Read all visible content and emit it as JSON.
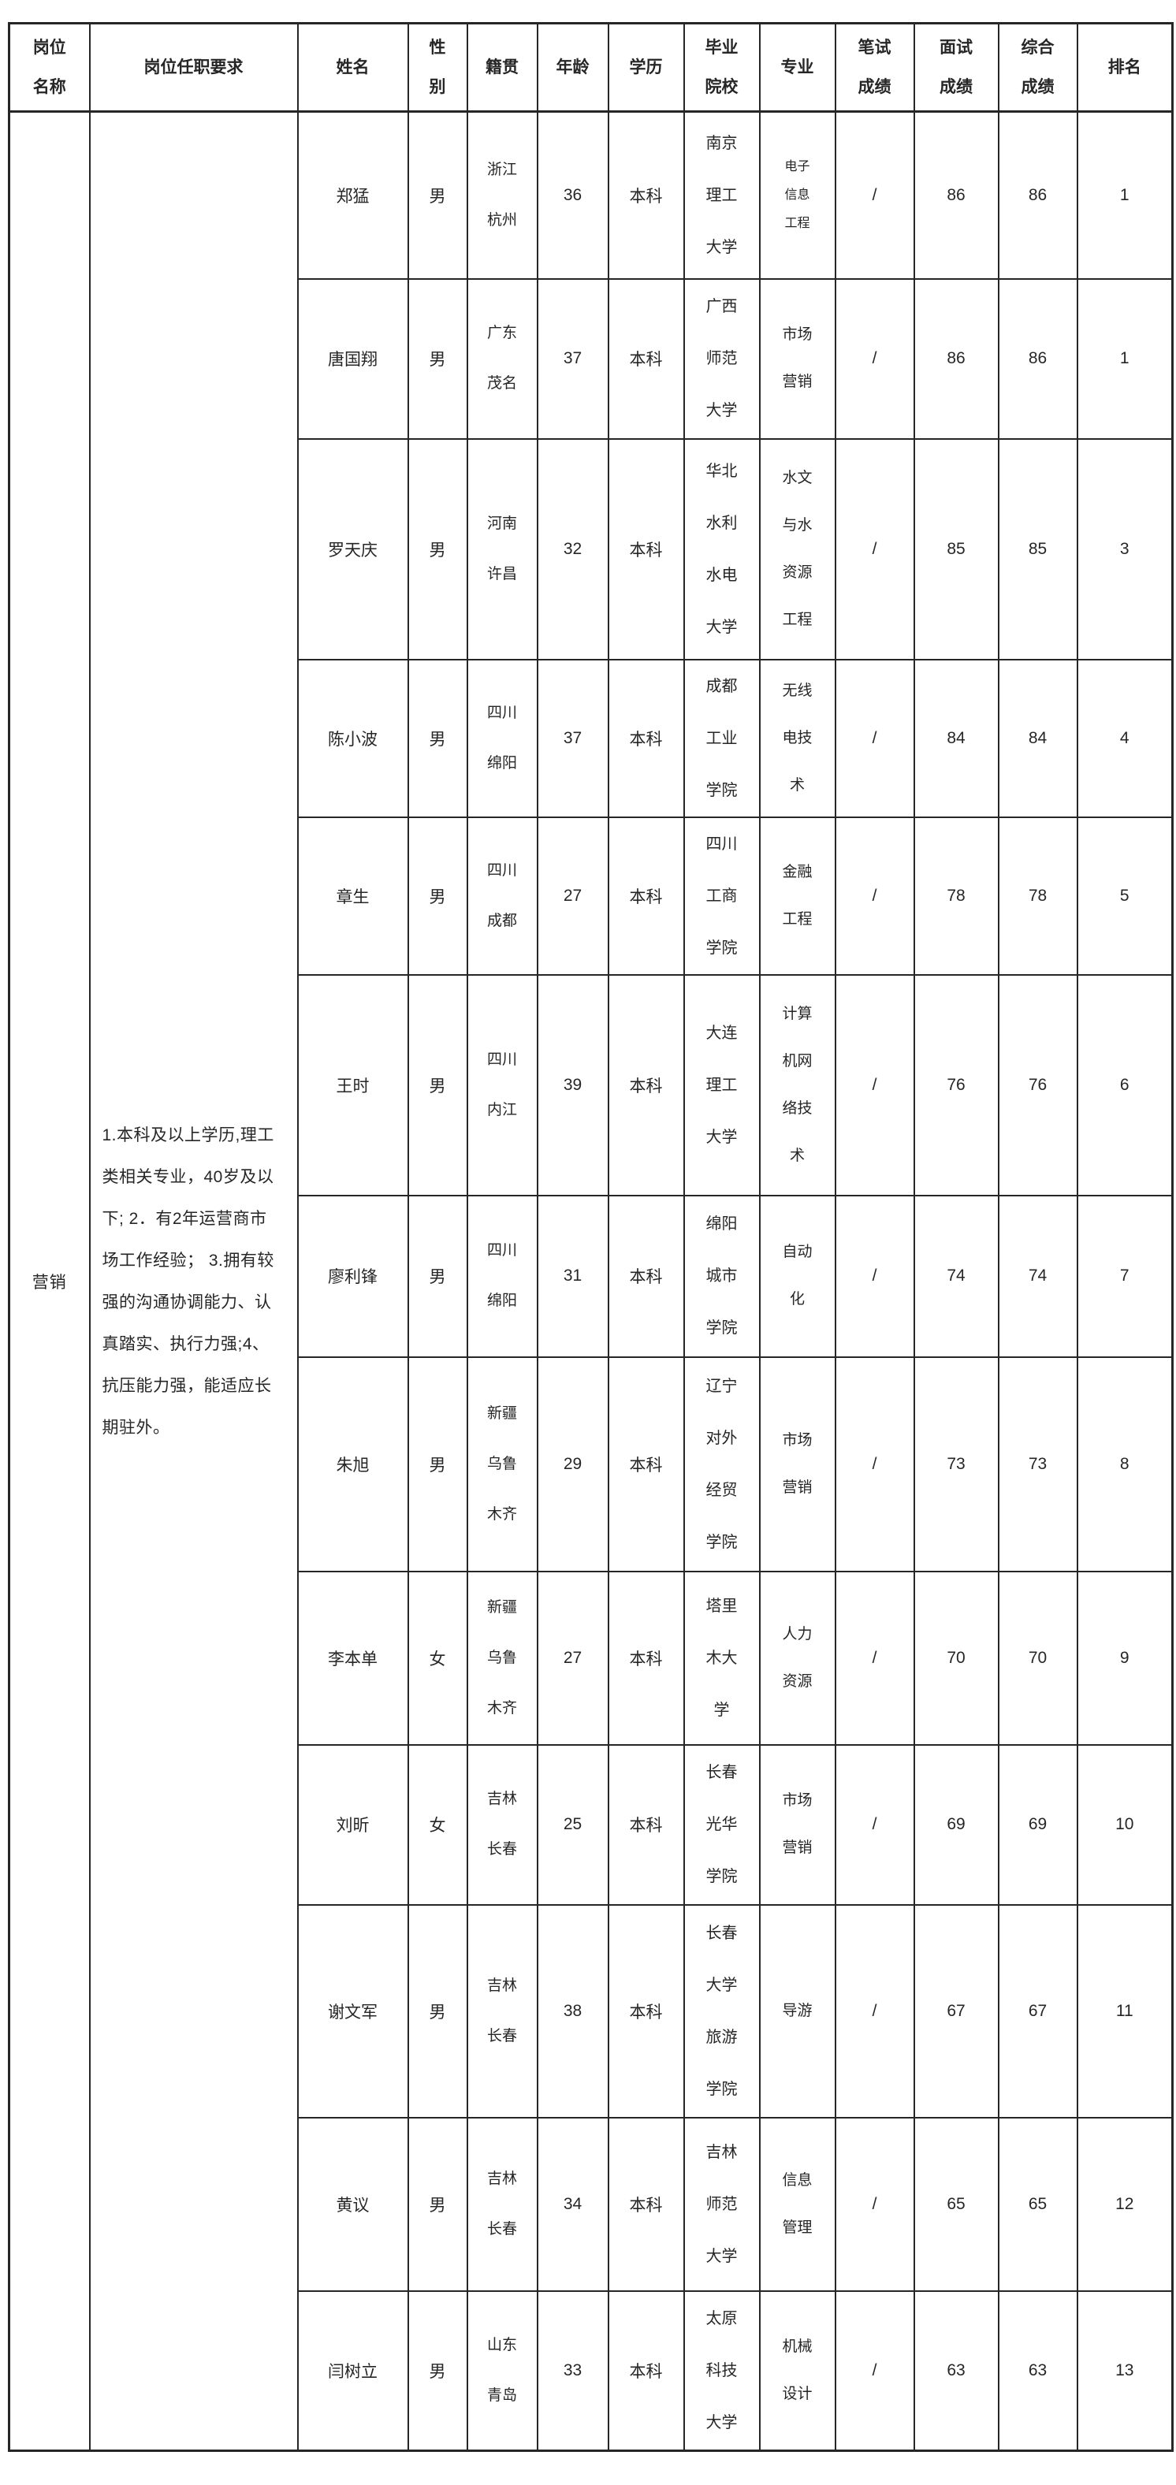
{
  "colors": {
    "background": "#ffffff",
    "border": "#262626",
    "text": "#262626"
  },
  "table": {
    "headers": [
      [
        "岗位",
        "名称"
      ],
      [
        "岗位任职要求"
      ],
      [
        "姓名"
      ],
      [
        "性",
        "别"
      ],
      [
        "籍贯"
      ],
      [
        "年龄"
      ],
      [
        "学历"
      ],
      [
        "毕业",
        "院校"
      ],
      [
        "专业"
      ],
      [
        "笔试",
        "成绩"
      ],
      [
        "面试",
        "成绩"
      ],
      [
        "综合",
        "成绩"
      ],
      [
        "排名"
      ]
    ],
    "position": {
      "name": "营销",
      "requirements": "1.本科及以上学历,理工类相关专业，40岁及以下; 2．有2年运营商市场工作经验； 3.拥有较强的沟通协调能力、认真踏实、执行力强;4、抗压能力强，能适应长期驻外。"
    },
    "rows": [
      {
        "name": "郑猛",
        "gender": "男",
        "native": [
          "浙江",
          "杭州"
        ],
        "age": "36",
        "education": "本科",
        "school": [
          "南京",
          "理工",
          "大学"
        ],
        "major": [
          "电子",
          "信息",
          "工程"
        ],
        "written": "/",
        "interview": "86",
        "overall": "86",
        "rank": "1"
      },
      {
        "name": "唐国翔",
        "gender": "男",
        "native": [
          "广东",
          "茂名"
        ],
        "age": "37",
        "education": "本科",
        "school": [
          "广西",
          "师范",
          "大学"
        ],
        "major": [
          "市场",
          "营销"
        ],
        "written": "/",
        "interview": "86",
        "overall": "86",
        "rank": "1"
      },
      {
        "name": "罗天庆",
        "gender": "男",
        "native": [
          "河南",
          "许昌"
        ],
        "age": "32",
        "education": "本科",
        "school": [
          "华北",
          "水利",
          "水电",
          "大学"
        ],
        "major": [
          "水文",
          "与水",
          "资源",
          "工程"
        ],
        "written": "/",
        "interview": "85",
        "overall": "85",
        "rank": "3"
      },
      {
        "name": "陈小波",
        "gender": "男",
        "native": [
          "四川",
          "绵阳"
        ],
        "age": "37",
        "education": "本科",
        "school": [
          "成都",
          "工业",
          "学院"
        ],
        "major": [
          "无线",
          "电技",
          "术"
        ],
        "written": "/",
        "interview": "84",
        "overall": "84",
        "rank": "4"
      },
      {
        "name": "章生",
        "gender": "男",
        "native": [
          "四川",
          "成都"
        ],
        "age": "27",
        "education": "本科",
        "school": [
          "四川",
          "工商",
          "学院"
        ],
        "major": [
          "金融",
          "工程"
        ],
        "written": "/",
        "interview": "78",
        "overall": "78",
        "rank": "5"
      },
      {
        "name": "王时",
        "gender": "男",
        "native": [
          "四川",
          "内江"
        ],
        "age": "39",
        "education": "本科",
        "school": [
          "大连",
          "理工",
          "大学"
        ],
        "major": [
          "计算",
          "机网",
          "络技",
          "术"
        ],
        "written": "/",
        "interview": "76",
        "overall": "76",
        "rank": "6"
      },
      {
        "name": "廖利锋",
        "gender": "男",
        "native": [
          "四川",
          "绵阳"
        ],
        "age": "31",
        "education": "本科",
        "school": [
          "绵阳",
          "城市",
          "学院"
        ],
        "major": [
          "自动",
          "化"
        ],
        "written": "/",
        "interview": "74",
        "overall": "74",
        "rank": "7"
      },
      {
        "name": "朱旭",
        "gender": "男",
        "native": [
          "新疆",
          "乌鲁",
          "木齐"
        ],
        "age": "29",
        "education": "本科",
        "school": [
          "辽宁",
          "对外",
          "经贸",
          "学院"
        ],
        "major": [
          "市场",
          "营销"
        ],
        "written": "/",
        "interview": "73",
        "overall": "73",
        "rank": "8"
      },
      {
        "name": "李本单",
        "gender": "女",
        "native": [
          "新疆",
          "乌鲁",
          "木齐"
        ],
        "age": "27",
        "education": "本科",
        "school": [
          "塔里",
          "木大",
          "学"
        ],
        "major": [
          "人力",
          "资源"
        ],
        "written": "/",
        "interview": "70",
        "overall": "70",
        "rank": "9"
      },
      {
        "name": "刘昕",
        "gender": "女",
        "native": [
          "吉林",
          "长春"
        ],
        "age": "25",
        "education": "本科",
        "school": [
          "长春",
          "光华",
          "学院"
        ],
        "major": [
          "市场",
          "营销"
        ],
        "written": "/",
        "interview": "69",
        "overall": "69",
        "rank": "10"
      },
      {
        "name": "谢文军",
        "gender": "男",
        "native": [
          "吉林",
          "长春"
        ],
        "age": "38",
        "education": "本科",
        "school": [
          "长春",
          "大学",
          "旅游",
          "学院"
        ],
        "major": [
          "导游"
        ],
        "written": "/",
        "interview": "67",
        "overall": "67",
        "rank": "11"
      },
      {
        "name": "黄议",
        "gender": "男",
        "native": [
          "吉林",
          "长春"
        ],
        "age": "34",
        "education": "本科",
        "school": [
          "吉林",
          "师范",
          "大学"
        ],
        "major": [
          "信息",
          "管理"
        ],
        "written": "/",
        "interview": "65",
        "overall": "65",
        "rank": "12"
      },
      {
        "name": "闫树立",
        "gender": "男",
        "native": [
          "山东",
          "青岛"
        ],
        "age": "33",
        "education": "本科",
        "school": [
          "太原",
          "科技",
          "大学"
        ],
        "major": [
          "机械",
          "设计"
        ],
        "written": "/",
        "interview": "63",
        "overall": "63",
        "rank": "13"
      }
    ]
  }
}
